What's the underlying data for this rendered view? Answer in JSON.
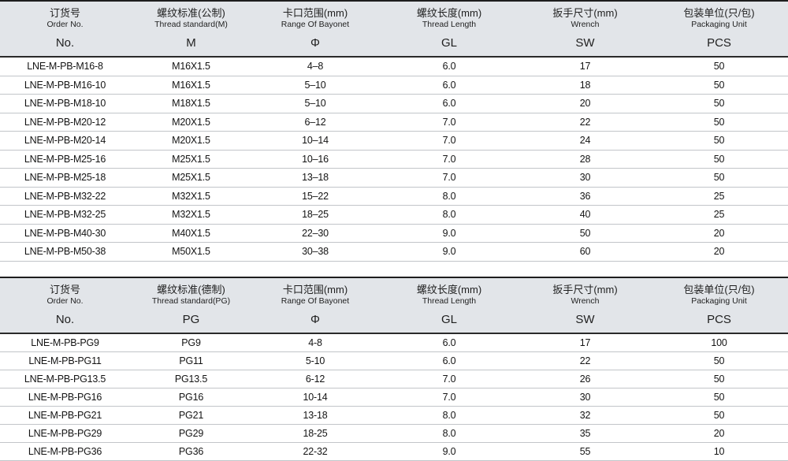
{
  "tables": [
    {
      "id": "metric-spec-table",
      "columns": [
        {
          "key": "order-no",
          "zh": "订货号",
          "en": "Order No.",
          "symbol": "No."
        },
        {
          "key": "thread-standard",
          "zh": "螺纹标准(公制)",
          "en": "Thread standard(M)",
          "symbol": "M"
        },
        {
          "key": "bayonet-range",
          "zh": "卡口范围(mm)",
          "en": "Range Of Bayonet",
          "symbol": "Φ"
        },
        {
          "key": "thread-length",
          "zh": "螺纹长度(mm)",
          "en": "Thread Length",
          "symbol": "GL"
        },
        {
          "key": "wrench-size",
          "zh": "扳手尺寸(mm)",
          "en": "Wrench",
          "symbol": "SW"
        },
        {
          "key": "packaging-unit",
          "zh": "包装单位(只/包)",
          "en": "Packaging Unit",
          "symbol": "PCS"
        }
      ],
      "rows": [
        [
          "LNE-M-PB-M16-8",
          "M16X1.5",
          "4–8",
          "6.0",
          "17",
          "50"
        ],
        [
          "LNE-M-PB-M16-10",
          "M16X1.5",
          "5–10",
          "6.0",
          "18",
          "50"
        ],
        [
          "LNE-M-PB-M18-10",
          "M18X1.5",
          "5–10",
          "6.0",
          "20",
          "50"
        ],
        [
          "LNE-M-PB-M20-12",
          "M20X1.5",
          "6–12",
          "7.0",
          "22",
          "50"
        ],
        [
          "LNE-M-PB-M20-14",
          "M20X1.5",
          "10–14",
          "7.0",
          "24",
          "50"
        ],
        [
          "LNE-M-PB-M25-16",
          "M25X1.5",
          "10–16",
          "7.0",
          "28",
          "50"
        ],
        [
          "LNE-M-PB-M25-18",
          "M25X1.5",
          "13–18",
          "7.0",
          "30",
          "50"
        ],
        [
          "LNE-M-PB-M32-22",
          "M32X1.5",
          "15–22",
          "8.0",
          "36",
          "25"
        ],
        [
          "LNE-M-PB-M32-25",
          "M32X1.5",
          "18–25",
          "8.0",
          "40",
          "25"
        ],
        [
          "LNE-M-PB-M40-30",
          "M40X1.5",
          "22–30",
          "9.0",
          "50",
          "20"
        ],
        [
          "LNE-M-PB-M50-38",
          "M50X1.5",
          "30–38",
          "9.0",
          "60",
          "20"
        ]
      ]
    },
    {
      "id": "pg-spec-table",
      "columns": [
        {
          "key": "order-no",
          "zh": "订货号",
          "en": "Order No.",
          "symbol": "No."
        },
        {
          "key": "thread-standard",
          "zh": "螺纹标准(德制)",
          "en": "Thread standard(PG)",
          "symbol": "PG"
        },
        {
          "key": "bayonet-range",
          "zh": "卡口范围(mm)",
          "en": "Range Of Bayonet",
          "symbol": "Φ"
        },
        {
          "key": "thread-length",
          "zh": "螺纹长度(mm)",
          "en": "Thread Length",
          "symbol": "GL"
        },
        {
          "key": "wrench-size",
          "zh": "扳手尺寸(mm)",
          "en": "Wrench",
          "symbol": "SW"
        },
        {
          "key": "packaging-unit",
          "zh": "包装单位(只/包)",
          "en": "Packaging Unit",
          "symbol": "PCS"
        }
      ],
      "rows": [
        [
          "LNE-M-PB-PG9",
          "PG9",
          "4-8",
          "6.0",
          "17",
          "100"
        ],
        [
          "LNE-M-PB-PG11",
          "PG11",
          "5-10",
          "6.0",
          "22",
          "50"
        ],
        [
          "LNE-M-PB-PG13.5",
          "PG13.5",
          "6-12",
          "7.0",
          "26",
          "50"
        ],
        [
          "LNE-M-PB-PG16",
          "PG16",
          "10-14",
          "7.0",
          "30",
          "50"
        ],
        [
          "LNE-M-PB-PG21",
          "PG21",
          "13-18",
          "8.0",
          "32",
          "50"
        ],
        [
          "LNE-M-PB-PG29",
          "PG29",
          "18-25",
          "8.0",
          "35",
          "20"
        ],
        [
          "LNE-M-PB-PG36",
          "PG36",
          "22-32",
          "9.0",
          "55",
          "10"
        ]
      ]
    }
  ],
  "colors": {
    "header_background": "#e2e5e9",
    "table_top_border": "#1e1e1e",
    "header_bottom_border": "#2a2a2a",
    "row_separator": "#c2c5c9",
    "text": "#141414"
  }
}
